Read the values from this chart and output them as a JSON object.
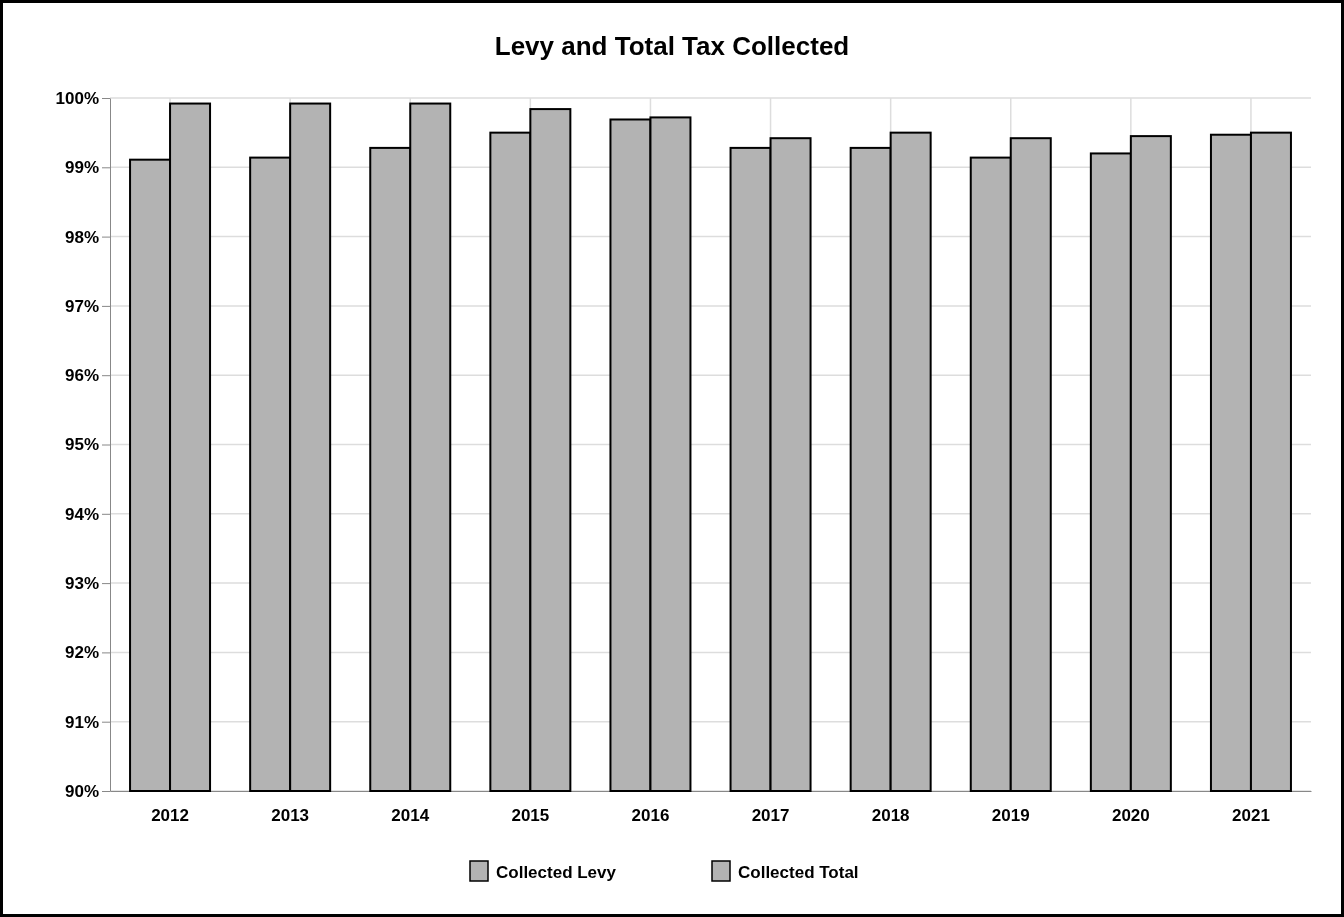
{
  "chart_data": {
    "type": "bar",
    "title": "Levy and Total Tax Collected",
    "categories": [
      "2012",
      "2013",
      "2014",
      "2015",
      "2016",
      "2017",
      "2018",
      "2019",
      "2020",
      "2021"
    ],
    "series": [
      {
        "name": "Collected Levy",
        "color": "#b3b3b3",
        "values": [
          99.11,
          99.14,
          99.28,
          99.5,
          99.69,
          99.28,
          99.28,
          99.14,
          99.2,
          99.47
        ]
      },
      {
        "name": "Collected Total",
        "color": "#b3b3b3",
        "values": [
          99.92,
          99.92,
          99.92,
          99.84,
          99.72,
          99.42,
          99.5,
          99.42,
          99.45,
          99.5
        ]
      }
    ],
    "ylim": [
      90,
      100
    ],
    "yticks": [
      {
        "value": 90,
        "label": "90%"
      },
      {
        "value": 91,
        "label": "91%"
      },
      {
        "value": 92,
        "label": "92%"
      },
      {
        "value": 93,
        "label": "93%"
      },
      {
        "value": 94,
        "label": "94%"
      },
      {
        "value": 95,
        "label": "95%"
      },
      {
        "value": 96,
        "label": "96%"
      },
      {
        "value": 97,
        "label": "97%"
      },
      {
        "value": 98,
        "label": "98%"
      },
      {
        "value": 99,
        "label": "99%"
      },
      {
        "value": 100,
        "label": "100%"
      }
    ],
    "grid": true,
    "legend": "bottom"
  }
}
